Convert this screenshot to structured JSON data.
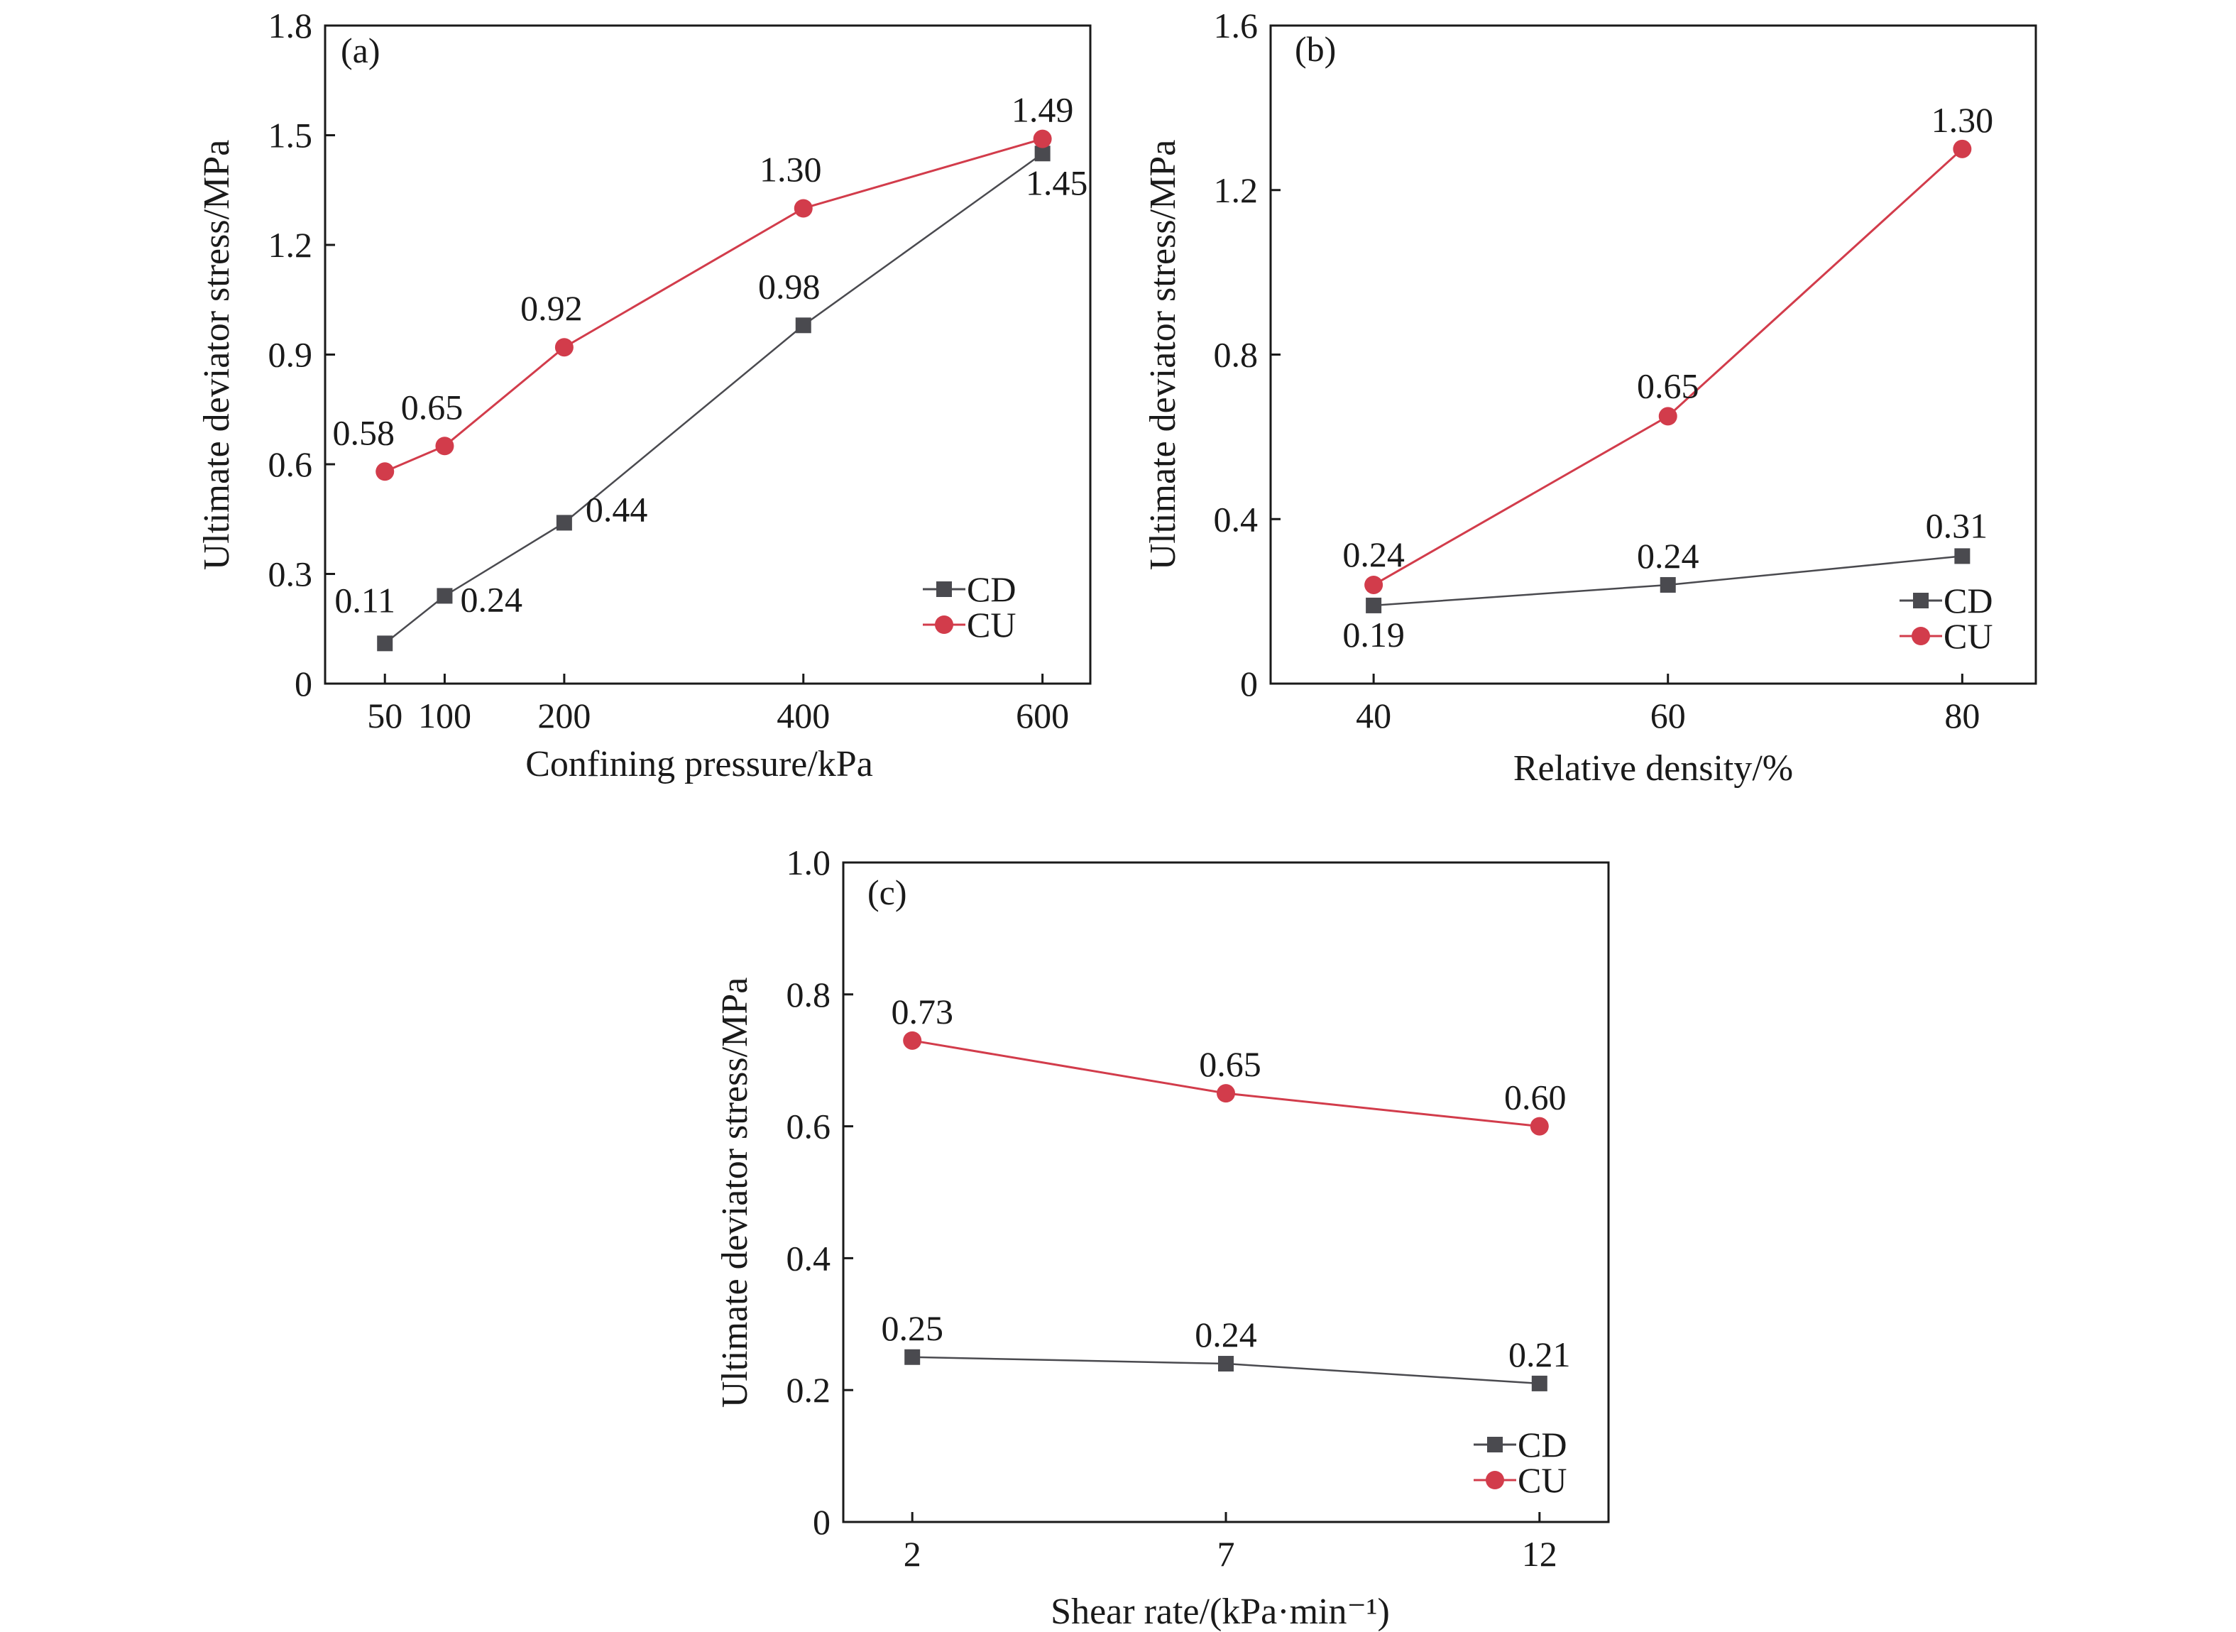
{
  "chart_data": [
    {
      "panel": "(a)",
      "type": "line",
      "xlabel": "Confining pressure/kPa",
      "ylabel": "Ultimate deviator stress/MPa",
      "xlim": [
        0,
        640
      ],
      "ylim": [
        0,
        1.8
      ],
      "x": [
        50,
        100,
        200,
        400,
        600
      ],
      "x_ticks": [
        50,
        100,
        200,
        400,
        600
      ],
      "y_ticks": [
        "0",
        "0.3",
        "0.6",
        "0.9",
        "1.2",
        "1.5",
        "1.8"
      ],
      "legend_position": "bottom-right",
      "series": [
        {
          "name": "CD",
          "color": "#4a4a4f",
          "marker": "square",
          "values": [
            0.11,
            0.24,
            0.44,
            0.98,
            1.45
          ],
          "labels": [
            "0.11",
            "0.24",
            "0.44",
            "0.98",
            "1.45"
          ]
        },
        {
          "name": "CU",
          "color": "#d23c4b",
          "marker": "circle",
          "values": [
            0.58,
            0.65,
            0.92,
            1.3,
            1.49
          ],
          "labels": [
            "0.58",
            "0.65",
            "0.92",
            "1.30",
            "1.49"
          ]
        }
      ]
    },
    {
      "panel": "(b)",
      "type": "line",
      "xlabel": "Relative density/%",
      "ylabel": "Ultimate deviator stress/MPa",
      "xlim": [
        33,
        85
      ],
      "ylim": [
        0,
        1.6
      ],
      "x": [
        40,
        60,
        80
      ],
      "x_ticks": [
        40,
        60,
        80
      ],
      "y_ticks": [
        "0",
        "0.4",
        "0.8",
        "1.2",
        "1.6"
      ],
      "legend_position": "bottom-right",
      "series": [
        {
          "name": "CD",
          "color": "#4a4a4f",
          "marker": "square",
          "values": [
            0.19,
            0.24,
            0.31
          ],
          "labels": [
            "0.19",
            "0.24",
            "0.31"
          ]
        },
        {
          "name": "CU",
          "color": "#d23c4b",
          "marker": "circle",
          "values": [
            0.24,
            0.65,
            1.3
          ],
          "labels": [
            "0.24",
            "0.65",
            "1.30"
          ]
        }
      ]
    },
    {
      "panel": "(c)",
      "type": "line",
      "xlabel": "Shear rate/(kPa·min⁻¹)",
      "ylabel": "Ultimate deviator stress/MPa",
      "xlim": [
        0.9,
        13.1
      ],
      "ylim": [
        0,
        1.0
      ],
      "x": [
        2,
        7,
        12
      ],
      "x_ticks": [
        2,
        7,
        12
      ],
      "y_ticks": [
        "0",
        "0.2",
        "0.4",
        "0.6",
        "0.8",
        "1.0"
      ],
      "legend_position": "bottom-right",
      "series": [
        {
          "name": "CD",
          "color": "#4a4a4f",
          "marker": "square",
          "values": [
            0.25,
            0.24,
            0.21
          ],
          "labels": [
            "0.25",
            "0.24",
            "0.21"
          ]
        },
        {
          "name": "CU",
          "color": "#d23c4b",
          "marker": "circle",
          "values": [
            0.73,
            0.65,
            0.6
          ],
          "labels": [
            "0.73",
            "0.65",
            "0.60"
          ]
        }
      ]
    }
  ]
}
